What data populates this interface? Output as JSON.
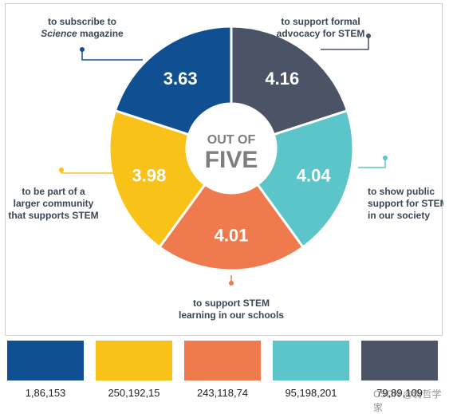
{
  "chart_data": {
    "type": "pie",
    "center_label": [
      "OUT OF",
      "FIVE"
    ],
    "slices": [
      {
        "label": [
          "to support formal",
          "advocacy for STEM"
        ],
        "value": 4.16,
        "color": "#4a5466"
      },
      {
        "label": [
          "to show public",
          "support for STEM",
          "in our society"
        ],
        "value": 4.04,
        "color": "#5cc5c9"
      },
      {
        "label": [
          "to support STEM",
          "learning in our schools"
        ],
        "value": 4.01,
        "color": "#ef7a4e"
      },
      {
        "label": [
          "to be part of a",
          "larger community",
          "that supports STEM"
        ],
        "value": 3.98,
        "color": "#f8c218"
      },
      {
        "label": [
          "to subscribe to",
          "Science magazine"
        ],
        "value": 3.63,
        "color": "#0f4f92"
      }
    ]
  },
  "palette": [
    {
      "color": "#0f4f92",
      "caption": "1,86,153"
    },
    {
      "color": "#f8c218",
      "caption": "250,192,15"
    },
    {
      "color": "#ef7a4e",
      "caption": "243,118,74"
    },
    {
      "color": "#5cc5c9",
      "caption": "95,198,201"
    },
    {
      "color": "#4a5466",
      "caption": "79,89,109"
    }
  ],
  "watermark": "CSDN @伪哲学家"
}
